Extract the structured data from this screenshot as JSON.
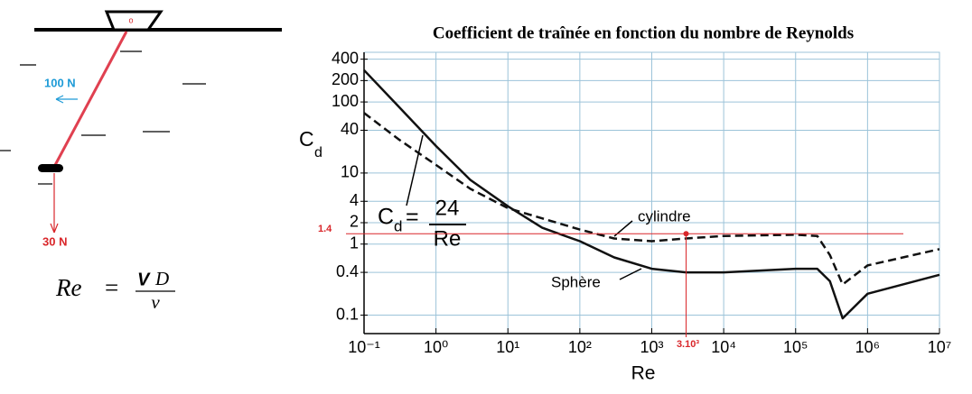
{
  "diagram": {
    "pivot": "o",
    "forces": [
      {
        "label": "100 N",
        "color": "#1e9bd7"
      },
      {
        "label": "30 N",
        "color": "#d9262a"
      }
    ],
    "formula": {
      "lhs": "Re",
      "eq": "=",
      "num_v": "V",
      "num_d": "D",
      "den": "ν"
    }
  },
  "chart_data": {
    "type": "line",
    "title": "Coefficient de traînée en fonction du nombre de Reynolds",
    "xlabel": "Re",
    "ylabel": "C",
    "ylabel_sub": "d",
    "log_x": true,
    "log_y": true,
    "grid": true,
    "x": [
      0.1,
      0.3,
      1,
      3,
      10,
      30,
      100,
      300,
      1000,
      3000,
      10000,
      100000,
      200000,
      300000,
      450000,
      1000000,
      10000000
    ],
    "series": [
      {
        "name": "Sphère",
        "color": "#111111",
        "dashed": false,
        "values": [
          280,
          87,
          24,
          8,
          3.4,
          1.7,
          1.1,
          0.65,
          0.45,
          0.4,
          0.4,
          0.45,
          0.45,
          0.3,
          0.09,
          0.2,
          0.37
        ]
      },
      {
        "name": "cylindre",
        "color": "#111111",
        "dashed": true,
        "values": [
          70,
          30,
          13,
          6,
          3.2,
          2.3,
          1.6,
          1.2,
          1.1,
          1.2,
          1.3,
          1.35,
          1.3,
          0.7,
          0.27,
          0.5,
          0.85
        ]
      }
    ],
    "xlim": [
      0.1,
      10000000
    ],
    "ylim": [
      0.055,
      500
    ],
    "xticks": [
      {
        "value": 0.1,
        "label": "10⁻¹"
      },
      {
        "value": 1,
        "label": "10⁰"
      },
      {
        "value": 10,
        "label": "10¹"
      },
      {
        "value": 100,
        "label": "10²"
      },
      {
        "value": 1000,
        "label": "10³"
      },
      {
        "value": 10000,
        "label": "10⁴"
      },
      {
        "value": 100000,
        "label": "10⁵"
      },
      {
        "value": 1000000,
        "label": "10⁶"
      },
      {
        "value": 10000000,
        "label": "10⁷"
      }
    ],
    "yticks": [
      400,
      200,
      100,
      40,
      10,
      4,
      2,
      1,
      0.4,
      0.1
    ],
    "formula": {
      "lhs": "C",
      "sub": "d",
      "eq": "=",
      "num": "24",
      "den": "Re"
    },
    "reference": {
      "color": "#d9262a",
      "y": 1.4,
      "x": {
        "value": 3000,
        "label": "3.10³"
      }
    }
  }
}
